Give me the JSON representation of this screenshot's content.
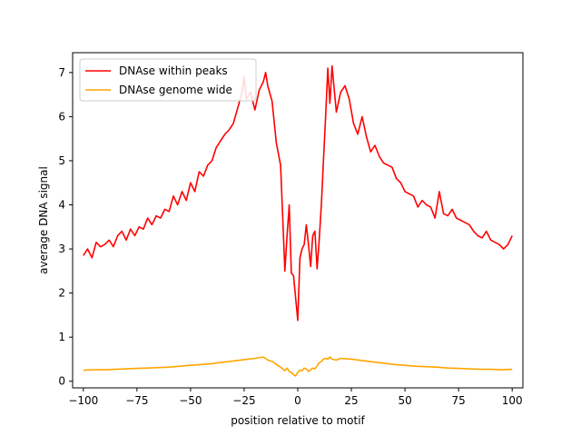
{
  "chart_data": {
    "type": "line",
    "title": "",
    "xlabel": "position relative to motif",
    "ylabel": "average DNA signal",
    "xlim": [
      -105,
      105
    ],
    "ylim": [
      -0.15,
      7.45
    ],
    "xticks": [
      -100,
      -75,
      -50,
      -25,
      0,
      25,
      50,
      75,
      100
    ],
    "xtick_labels": [
      "−100",
      "−75",
      "−50",
      "−25",
      "0",
      "25",
      "50",
      "75",
      "100"
    ],
    "yticks": [
      0,
      1,
      2,
      3,
      4,
      5,
      6,
      7
    ],
    "ytick_labels": [
      "0",
      "1",
      "2",
      "3",
      "4",
      "5",
      "6",
      "7"
    ],
    "grid": false,
    "legend_position": "top-left",
    "series": [
      {
        "name": "DNAse within peaks",
        "color": "#ff0000",
        "x": [
          -100,
          -98,
          -96,
          -94,
          -92,
          -90,
          -88,
          -86,
          -84,
          -82,
          -80,
          -78,
          -76,
          -74,
          -72,
          -70,
          -68,
          -66,
          -64,
          -62,
          -60,
          -58,
          -56,
          -54,
          -52,
          -50,
          -48,
          -46,
          -44,
          -42,
          -40,
          -38,
          -36,
          -34,
          -32,
          -30,
          -28,
          -26,
          -25,
          -24,
          -22,
          -20,
          -18,
          -16,
          -15,
          -14,
          -12,
          -10,
          -8,
          -6,
          -5,
          -4,
          -3,
          -2,
          -1,
          0,
          1,
          2,
          3,
          4,
          5,
          6,
          7,
          8,
          9,
          10,
          11,
          12,
          13,
          14,
          15,
          16,
          18,
          20,
          22,
          24,
          26,
          28,
          30,
          32,
          34,
          36,
          38,
          40,
          42,
          44,
          46,
          48,
          50,
          52,
          54,
          56,
          58,
          60,
          62,
          64,
          66,
          68,
          70,
          72,
          74,
          76,
          78,
          80,
          82,
          84,
          86,
          88,
          90,
          92,
          94,
          96,
          98,
          100
        ],
        "values": [
          2.85,
          3.0,
          2.8,
          3.15,
          3.05,
          3.1,
          3.2,
          3.05,
          3.3,
          3.4,
          3.2,
          3.45,
          3.3,
          3.5,
          3.45,
          3.7,
          3.55,
          3.75,
          3.7,
          3.9,
          3.85,
          4.2,
          4.0,
          4.3,
          4.1,
          4.5,
          4.3,
          4.75,
          4.65,
          4.9,
          5.0,
          5.3,
          5.45,
          5.6,
          5.7,
          5.85,
          6.2,
          6.55,
          6.9,
          6.4,
          6.55,
          6.15,
          6.6,
          6.8,
          7.0,
          6.7,
          6.35,
          5.4,
          4.9,
          2.5,
          3.3,
          4.0,
          2.45,
          2.4,
          1.9,
          1.38,
          2.8,
          3.0,
          3.1,
          3.55,
          3.1,
          2.6,
          3.3,
          3.4,
          2.55,
          3.2,
          4.0,
          5.0,
          6.0,
          7.1,
          6.3,
          7.15,
          6.1,
          6.55,
          6.7,
          6.4,
          5.85,
          5.6,
          6.0,
          5.55,
          5.2,
          5.35,
          5.1,
          4.95,
          4.9,
          4.85,
          4.6,
          4.5,
          4.3,
          4.25,
          4.2,
          3.95,
          4.1,
          4.0,
          3.95,
          3.7,
          4.3,
          3.8,
          3.75,
          3.9,
          3.7,
          3.65,
          3.6,
          3.55,
          3.4,
          3.3,
          3.25,
          3.4,
          3.2,
          3.15,
          3.1,
          3.0,
          3.1,
          3.3
        ]
      },
      {
        "name": "DNAse genome wide",
        "color": "#ffa500",
        "x": [
          -100,
          -95,
          -90,
          -85,
          -80,
          -75,
          -70,
          -65,
          -60,
          -55,
          -50,
          -45,
          -40,
          -35,
          -30,
          -25,
          -20,
          -16,
          -14,
          -12,
          -10,
          -8,
          -6,
          -5,
          -4,
          -3,
          -2,
          -1,
          0,
          1,
          2,
          3,
          4,
          5,
          6,
          7,
          8,
          9,
          10,
          11,
          12,
          13,
          14,
          15,
          16,
          18,
          20,
          25,
          30,
          35,
          40,
          45,
          50,
          55,
          60,
          65,
          70,
          75,
          80,
          85,
          90,
          95,
          100
        ],
        "values": [
          0.25,
          0.26,
          0.26,
          0.27,
          0.28,
          0.29,
          0.3,
          0.31,
          0.32,
          0.34,
          0.36,
          0.38,
          0.4,
          0.43,
          0.46,
          0.49,
          0.52,
          0.55,
          0.48,
          0.45,
          0.38,
          0.32,
          0.24,
          0.3,
          0.22,
          0.2,
          0.15,
          0.12,
          0.2,
          0.25,
          0.24,
          0.3,
          0.28,
          0.22,
          0.26,
          0.3,
          0.28,
          0.35,
          0.42,
          0.45,
          0.5,
          0.52,
          0.5,
          0.55,
          0.5,
          0.48,
          0.52,
          0.5,
          0.47,
          0.44,
          0.41,
          0.38,
          0.36,
          0.34,
          0.33,
          0.32,
          0.3,
          0.29,
          0.28,
          0.27,
          0.27,
          0.26,
          0.27
        ]
      }
    ]
  }
}
